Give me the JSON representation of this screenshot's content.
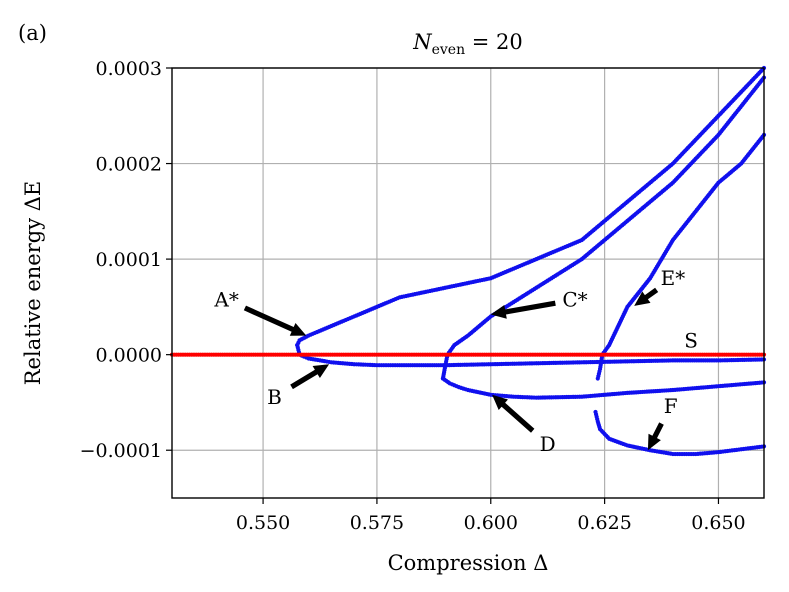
{
  "panel_label": "(a)",
  "chart_data": {
    "type": "scatter",
    "title": "N_even = 20",
    "title_main": "N",
    "title_sub": "even",
    "title_rest": " = 20",
    "xlabel": "Compression Δ",
    "ylabel": "Relative energy ΔE",
    "xlim": [
      0.53,
      0.66
    ],
    "ylim": [
      -0.00015,
      0.0003
    ],
    "xticks": [
      0.55,
      0.575,
      0.6,
      0.625,
      0.65
    ],
    "xtick_labels": [
      "0.550",
      "0.575",
      "0.600",
      "0.625",
      "0.650"
    ],
    "yticks": [
      -0.0001,
      0.0,
      0.0001,
      0.0002,
      0.0003
    ],
    "ytick_labels": [
      "−0.0001",
      "0.0000",
      "0.0001",
      "0.0002",
      "0.0003"
    ],
    "grid": true,
    "colors": {
      "branch": "#1010ee",
      "symmetric": "#ff0000",
      "grid": "#b0b0b0"
    },
    "series": [
      {
        "color": "#1010ee",
        "points": [
          [
            0.5575,
            1e-05
          ],
          [
            0.558,
            1.5e-05
          ],
          [
            0.56,
            2e-05
          ],
          [
            0.565,
            3e-05
          ],
          [
            0.57,
            4e-05
          ],
          [
            0.575,
            5e-05
          ],
          [
            0.58,
            6e-05
          ],
          [
            0.59,
            7e-05
          ],
          [
            0.6,
            8e-05
          ],
          [
            0.61,
            0.0001
          ],
          [
            0.62,
            0.00012
          ],
          [
            0.63,
            0.00016
          ],
          [
            0.64,
            0.0002
          ],
          [
            0.65,
            0.00025
          ],
          [
            0.66,
            0.0003
          ]
        ]
      },
      {
        "color": "#1010ee",
        "points": [
          [
            0.5575,
            1e-05
          ],
          [
            0.558,
            0.0
          ],
          [
            0.56,
            -4e-06
          ],
          [
            0.565,
            -8e-06
          ],
          [
            0.57,
            -1e-05
          ],
          [
            0.575,
            -1.1e-05
          ],
          [
            0.58,
            -1.1e-05
          ],
          [
            0.59,
            -1.1e-05
          ],
          [
            0.6,
            -1e-05
          ],
          [
            0.61,
            -9e-06
          ],
          [
            0.62,
            -8e-06
          ],
          [
            0.63,
            -7e-06
          ],
          [
            0.64,
            -6e-06
          ],
          [
            0.65,
            -6e-06
          ],
          [
            0.66,
            -5e-06
          ]
        ]
      },
      {
        "color": "#1010ee",
        "points": [
          [
            0.5895,
            -2.5e-05
          ],
          [
            0.59,
            -1.2e-05
          ],
          [
            0.5905,
            0.0
          ],
          [
            0.592,
            1e-05
          ],
          [
            0.595,
            2e-05
          ],
          [
            0.6,
            4e-05
          ],
          [
            0.605,
            5.5e-05
          ],
          [
            0.61,
            7e-05
          ],
          [
            0.62,
            0.0001
          ],
          [
            0.63,
            0.00014
          ],
          [
            0.64,
            0.00018
          ],
          [
            0.65,
            0.00023
          ],
          [
            0.66,
            0.00029
          ]
        ]
      },
      {
        "color": "#1010ee",
        "points": [
          [
            0.5895,
            -2.5e-05
          ],
          [
            0.591,
            -3e-05
          ],
          [
            0.593,
            -3.4e-05
          ],
          [
            0.595,
            -3.7e-05
          ],
          [
            0.6,
            -4.2e-05
          ],
          [
            0.605,
            -4.4e-05
          ],
          [
            0.61,
            -4.5e-05
          ],
          [
            0.62,
            -4.4e-05
          ],
          [
            0.63,
            -4e-05
          ],
          [
            0.64,
            -3.7e-05
          ],
          [
            0.65,
            -3.3e-05
          ],
          [
            0.66,
            -2.9e-05
          ]
        ]
      },
      {
        "color": "#1010ee",
        "points": [
          [
            0.6235,
            -2.5e-05
          ],
          [
            0.624,
            -1.5e-05
          ],
          [
            0.6245,
            0.0
          ],
          [
            0.626,
            1e-05
          ],
          [
            0.628,
            3e-05
          ],
          [
            0.63,
            5e-05
          ],
          [
            0.635,
            8e-05
          ],
          [
            0.64,
            0.00012
          ],
          [
            0.645,
            0.00015
          ],
          [
            0.65,
            0.00018
          ],
          [
            0.655,
            0.0002
          ],
          [
            0.66,
            0.00023
          ]
        ]
      },
      {
        "color": "#1010ee",
        "points": [
          [
            0.623,
            -6e-05
          ],
          [
            0.6235,
            -7e-05
          ],
          [
            0.624,
            -7.8e-05
          ],
          [
            0.626,
            -8.8e-05
          ],
          [
            0.63,
            -9.5e-05
          ],
          [
            0.635,
            -0.0001
          ],
          [
            0.64,
            -0.000104
          ],
          [
            0.645,
            -0.000104
          ],
          [
            0.65,
            -0.000102
          ],
          [
            0.655,
            -9.9e-05
          ],
          [
            0.66,
            -9.6e-05
          ]
        ]
      },
      {
        "color": "#ff0000",
        "points": [
          [
            0.53,
            0.0
          ],
          [
            0.66,
            0.0
          ]
        ]
      }
    ],
    "annotations": [
      {
        "label": "A*",
        "color": "#000000",
        "text_at": [
          0.542,
          5.75e-05
        ],
        "arrow_tip": [
          0.5595,
          2e-05
        ]
      },
      {
        "label": "B",
        "color": "#000000",
        "text_at": [
          0.5525,
          -4.45e-05
        ],
        "arrow_tip": [
          0.5645,
          -1e-05
        ]
      },
      {
        "label": "C*",
        "color": "#000000",
        "text_at": [
          0.6185,
          5.75e-05
        ],
        "arrow_tip": [
          0.6,
          4.2e-05
        ]
      },
      {
        "label": "D",
        "color": "#000000",
        "text_at": [
          0.6125,
          -9.35e-05
        ],
        "arrow_tip": [
          0.6003,
          -4.2e-05
        ]
      },
      {
        "label": "E*",
        "color": "#000000",
        "text_at": [
          0.64,
          8e-05
        ],
        "arrow_tip": [
          0.6315,
          5.1e-05
        ]
      },
      {
        "label": "F",
        "color": "#000000",
        "text_at": [
          0.6395,
          -5.35e-05
        ],
        "arrow_tip": [
          0.6345,
          -0.0001
        ]
      },
      {
        "label": "S",
        "color": "#ff0000",
        "text_at": [
          0.644,
          1.5e-05
        ],
        "arrow_tip": null
      }
    ]
  }
}
